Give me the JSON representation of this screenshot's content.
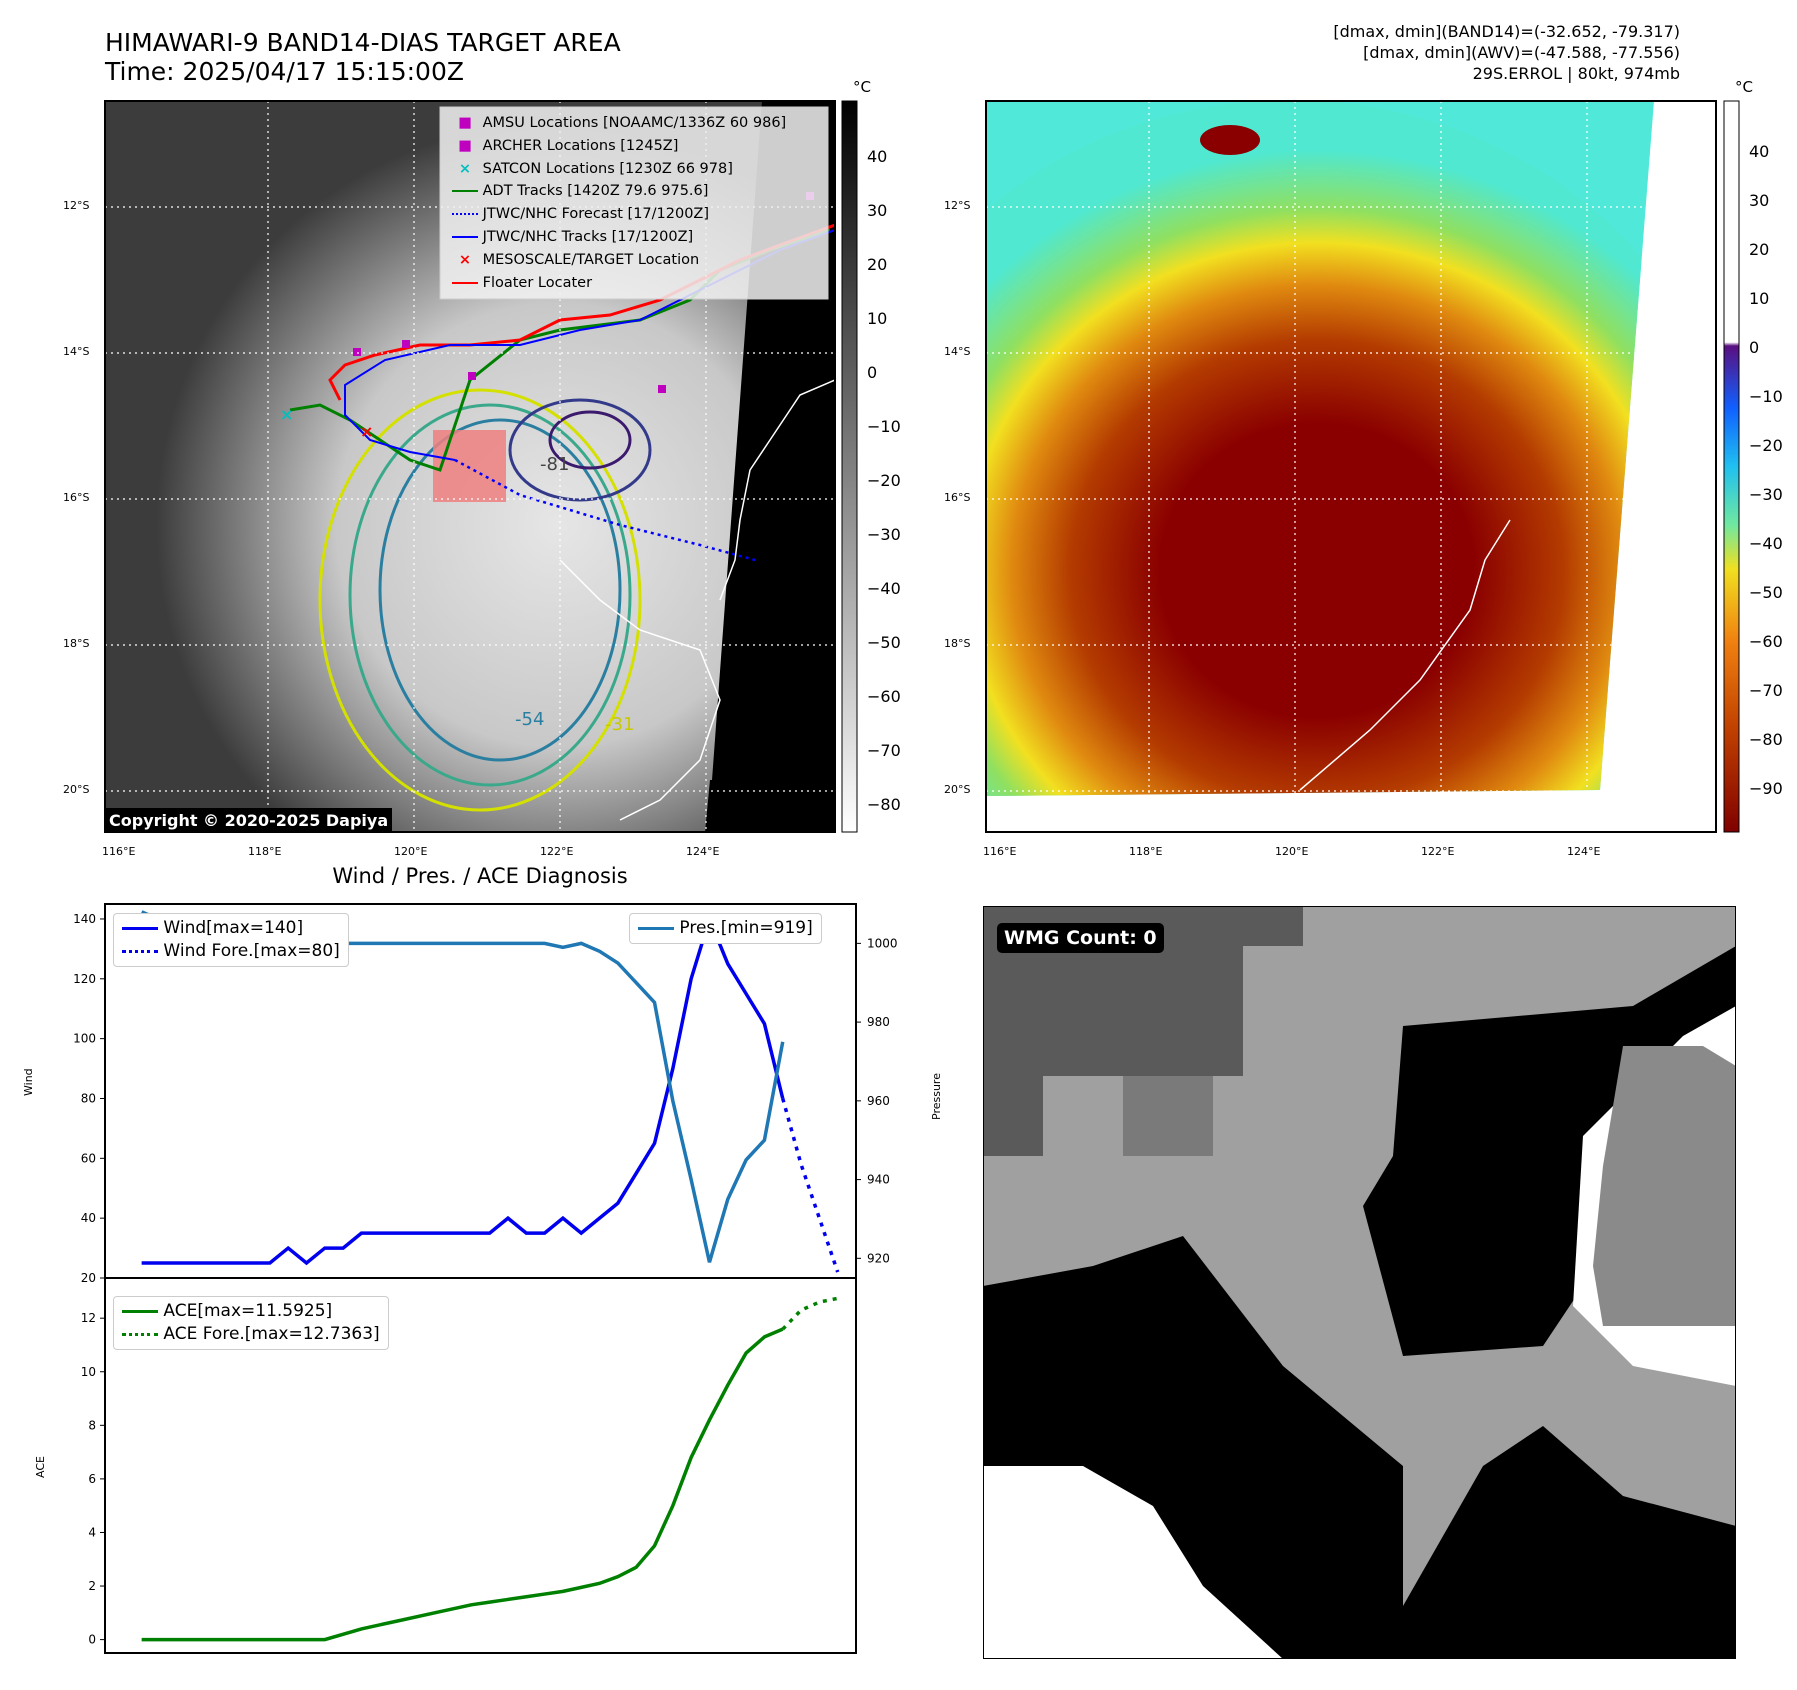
{
  "header": {
    "title_line1": "HIMAWARI-9 BAND14-DIAS TARGET AREA",
    "title_line2": "Time: 2025/04/17 15:15:00Z",
    "stats_line1": "[dmax, dmin](BAND14)=(-32.652, -79.317)",
    "stats_line2": "[dmax, dmin](AWV)=(-47.588, -77.556)",
    "stats_line3": "29S.ERROL | 80kt, 974mb"
  },
  "map_axes": {
    "lat_labels": [
      "12°S",
      "14°S",
      "16°S",
      "18°S",
      "20°S"
    ],
    "lon_labels": [
      "116°E",
      "118°E",
      "120°E",
      "122°E",
      "124°E"
    ]
  },
  "ir_panel": {
    "colorbar_unit": "°C",
    "colorbar_ticks": [
      "40",
      "30",
      "20",
      "10",
      "0",
      "−10",
      "−20",
      "−30",
      "−40",
      "−50",
      "−60",
      "−70",
      "−80"
    ],
    "copyright": "Copyright © 2020-2025 Dapiya",
    "legend": [
      {
        "label": "AMSU Locations [NOAAMC/1336Z 60 986]",
        "color": "#bf00bf",
        "marker": "square"
      },
      {
        "label": "ARCHER Locations [1245Z]",
        "color": "#bf00bf",
        "marker": "square"
      },
      {
        "label": "SATCON Locations [1230Z 66 978]",
        "color": "#00bfbf",
        "marker": "x"
      },
      {
        "label": "ADT Tracks [1420Z 79.6 975.6]",
        "color": "#008000",
        "marker": "line"
      },
      {
        "label": "JTWC/NHC Forecast [17/1200Z]",
        "color": "#0000ff",
        "marker": "dotted"
      },
      {
        "label": "JTWC/NHC Tracks [17/1200Z]",
        "color": "#0000ff",
        "marker": "line-dot"
      },
      {
        "label": "MESOSCALE/TARGET Location",
        "color": "#ff0000",
        "marker": "x"
      },
      {
        "label": "Floater Locater",
        "color": "#ff0000",
        "marker": "line"
      }
    ],
    "contour_labels": [
      "-81",
      "-54",
      "-31"
    ]
  },
  "awv_panel": {
    "colorbar_unit": "°C",
    "colorbar_ticks": [
      "40",
      "30",
      "20",
      "10",
      "0",
      "−10",
      "−20",
      "−30",
      "−40",
      "−50",
      "−60",
      "−70",
      "−80",
      "−90"
    ]
  },
  "wmg_panel": {
    "badge": "WMG Count: 0"
  },
  "chart_data": [
    {
      "type": "line",
      "title": "Wind / Pres. / ACE Diagnosis",
      "ylabel": "Wind",
      "y2label": "Pressure",
      "ylim": [
        20,
        145
      ],
      "y2lim": [
        915,
        1010
      ],
      "yticks": [
        20,
        40,
        60,
        80,
        100,
        120,
        140
      ],
      "y2ticks": [
        920,
        940,
        960,
        980,
        1000
      ],
      "xlim": [
        -1,
        40
      ],
      "legend_left": [
        "Wind[max=140]",
        "Wind Fore.[max=80]"
      ],
      "legend_right": [
        "Pres.[min=919]"
      ],
      "series": [
        {
          "name": "Wind",
          "color": "#0000ee",
          "style": "solid",
          "x": [
            1,
            2,
            3,
            4,
            5,
            6,
            7,
            8,
            9,
            10,
            11,
            12,
            13,
            14,
            15,
            16,
            17,
            18,
            19,
            20,
            21,
            22,
            23,
            24,
            25,
            26,
            27,
            28,
            29,
            30,
            31,
            32
          ],
          "values": [
            25,
            25,
            25,
            25,
            25,
            25,
            25,
            25,
            30,
            25,
            30,
            30,
            35,
            35,
            35,
            35,
            35,
            35,
            35,
            35,
            40,
            35,
            35,
            40,
            35,
            40,
            45,
            55,
            65,
            90,
            120,
            140
          ]
        },
        {
          "name": "Wind (cont.)",
          "color": "#0000ee",
          "style": "solid",
          "x": [
            32,
            33,
            34,
            35,
            36
          ],
          "values": [
            140,
            125,
            115,
            105,
            80
          ]
        },
        {
          "name": "Wind Fore.",
          "color": "#0000ee",
          "style": "dotted",
          "x": [
            36,
            37,
            38,
            39
          ],
          "values": [
            80,
            58,
            40,
            22
          ]
        },
        {
          "name": "Pres.",
          "color": "#1f77b4",
          "style": "solid",
          "axis": "right",
          "x": [
            1,
            2,
            3,
            4,
            5,
            6,
            7,
            8,
            9,
            10,
            11,
            12,
            13,
            14,
            15,
            16,
            17,
            18,
            19,
            20,
            21,
            22,
            23,
            24,
            25,
            26,
            27,
            28,
            29,
            30,
            31,
            32,
            33,
            34,
            35,
            36
          ],
          "values": [
            1008,
            1006,
            1006,
            1005,
            1003,
            1002,
            1001,
            1001,
            1000,
            1000,
            1000,
            1000,
            1000,
            1000,
            1000,
            1000,
            1000,
            1000,
            1000,
            1000,
            1000,
            1000,
            1000,
            999,
            1000,
            998,
            995,
            990,
            985,
            960,
            940,
            919,
            935,
            945,
            950,
            975
          ]
        }
      ]
    },
    {
      "type": "line",
      "ylabel": "ACE",
      "ylim": [
        -0.5,
        13.5
      ],
      "yticks": [
        0,
        2,
        4,
        6,
        8,
        10,
        12
      ],
      "xlim": [
        -1,
        40
      ],
      "legend": [
        "ACE[max=11.5925]",
        "ACE Fore.[max=12.7363]"
      ],
      "series": [
        {
          "name": "ACE",
          "color": "#008000",
          "style": "solid",
          "x": [
            1,
            4,
            7,
            10,
            11,
            13,
            15,
            17,
            19,
            20,
            21,
            22,
            23,
            24,
            25,
            26,
            27,
            28,
            29,
            30,
            31,
            32,
            33,
            34,
            35,
            36
          ],
          "values": [
            0,
            0,
            0,
            0,
            0,
            0.4,
            0.7,
            1.0,
            1.3,
            1.4,
            1.5,
            1.6,
            1.7,
            1.8,
            1.95,
            2.1,
            2.35,
            2.7,
            3.5,
            5.0,
            6.8,
            8.2,
            9.5,
            10.7,
            11.3,
            11.59
          ]
        },
        {
          "name": "ACE Fore.",
          "color": "#008000",
          "style": "dotted",
          "x": [
            36,
            37,
            38,
            39
          ],
          "values": [
            11.59,
            12.3,
            12.6,
            12.74
          ]
        }
      ]
    }
  ]
}
